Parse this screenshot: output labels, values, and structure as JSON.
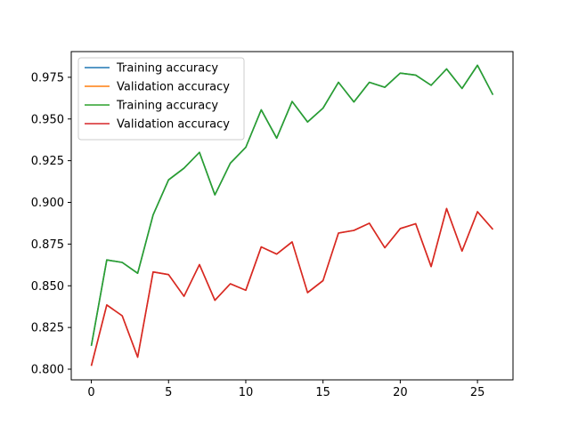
{
  "chart_data": {
    "type": "line",
    "title": "",
    "xlabel": "",
    "ylabel": "",
    "xlim": [
      -1.3,
      27.3
    ],
    "ylim": [
      0.7936,
      0.9904
    ],
    "x_ticks": [
      0,
      5,
      10,
      15,
      20,
      25
    ],
    "y_ticks": [
      0.8,
      0.825,
      0.85,
      0.875,
      0.9,
      0.925,
      0.95,
      0.975
    ],
    "grid": false,
    "legend_position": "top-left",
    "x": [
      0,
      1,
      2,
      3,
      4,
      5,
      6,
      7,
      8,
      9,
      10,
      11,
      12,
      13,
      14,
      15,
      16,
      17,
      18,
      19,
      20,
      21,
      22,
      23,
      24,
      25,
      26
    ],
    "series": [
      {
        "name": "Training accuracy",
        "color": "#1f77b4",
        "values": [
          0.814,
          0.8655,
          0.864,
          0.8575,
          0.8925,
          0.9135,
          0.9205,
          0.93,
          0.9045,
          0.9235,
          0.933,
          0.9555,
          0.9385,
          0.9605,
          0.9482,
          0.9565,
          0.972,
          0.9602,
          0.972,
          0.969,
          0.9775,
          0.9763,
          0.9702,
          0.98,
          0.9683,
          0.9822,
          0.9645
        ]
      },
      {
        "name": "Validation accuracy",
        "color": "#ff7f0e",
        "values": [
          0.802,
          0.8385,
          0.832,
          0.8072,
          0.8583,
          0.8567,
          0.8437,
          0.8627,
          0.8413,
          0.8512,
          0.8473,
          0.8733,
          0.869,
          0.8763,
          0.8459,
          0.8531,
          0.8816,
          0.8832,
          0.8875,
          0.8728,
          0.8843,
          0.8872,
          0.8615,
          0.8963,
          0.8708,
          0.8944,
          0.8838
        ]
      },
      {
        "name": "Training accuracy",
        "color": "#2ca02c",
        "values": [
          0.814,
          0.8655,
          0.864,
          0.8575,
          0.8925,
          0.9135,
          0.9205,
          0.93,
          0.9045,
          0.9235,
          0.933,
          0.9555,
          0.9385,
          0.9605,
          0.9482,
          0.9565,
          0.972,
          0.9602,
          0.972,
          0.969,
          0.9775,
          0.9763,
          0.9702,
          0.98,
          0.9683,
          0.9822,
          0.9645
        ]
      },
      {
        "name": "Validation accuracy",
        "color": "#d62728",
        "values": [
          0.802,
          0.8385,
          0.832,
          0.8072,
          0.8583,
          0.8567,
          0.8437,
          0.8627,
          0.8413,
          0.8512,
          0.8473,
          0.8733,
          0.869,
          0.8763,
          0.8459,
          0.8531,
          0.8816,
          0.8832,
          0.8875,
          0.8728,
          0.8843,
          0.8872,
          0.8615,
          0.8963,
          0.8708,
          0.8944,
          0.8838
        ]
      }
    ]
  }
}
